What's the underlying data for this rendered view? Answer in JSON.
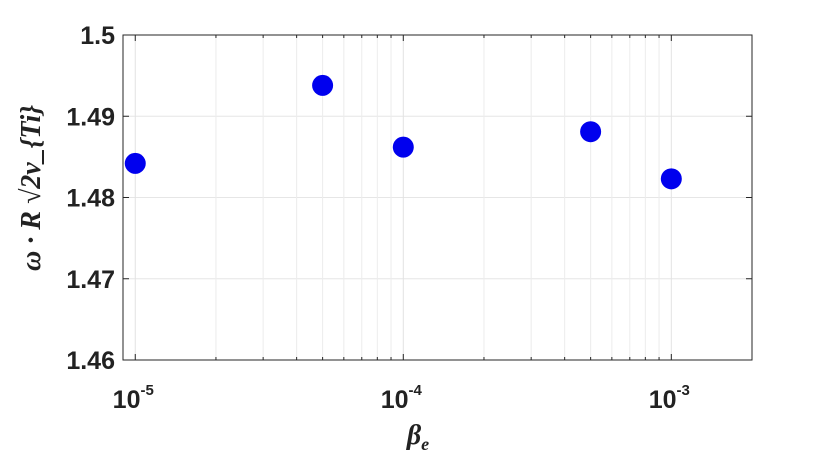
{
  "chart_data": {
    "type": "scatter",
    "xscale": "log",
    "xlim": [
      9e-06,
      0.002
    ],
    "ylim": [
      1.46,
      1.5
    ],
    "x": [
      1e-05,
      5e-05,
      0.0001,
      0.0005,
      0.001
    ],
    "y": [
      1.4842,
      1.4938,
      1.4862,
      1.4881,
      1.4823
    ],
    "marker_color": "#0000ee",
    "grid": true,
    "xlabel": {
      "base": "β",
      "sub": "e"
    },
    "ylabel": "ω · R √2v_{Ti}",
    "yticks": [
      {
        "value": 1.46,
        "label": "1.46"
      },
      {
        "value": 1.47,
        "label": "1.47"
      },
      {
        "value": 1.48,
        "label": "1.48"
      },
      {
        "value": 1.49,
        "label": "1.49"
      },
      {
        "value": 1.5,
        "label": "1.5"
      }
    ],
    "xticks": [
      {
        "value": 1e-05,
        "base": "10",
        "exp": "-5"
      },
      {
        "value": 0.0001,
        "base": "10",
        "exp": "-4"
      },
      {
        "value": 0.001,
        "base": "10",
        "exp": "-3"
      }
    ]
  }
}
